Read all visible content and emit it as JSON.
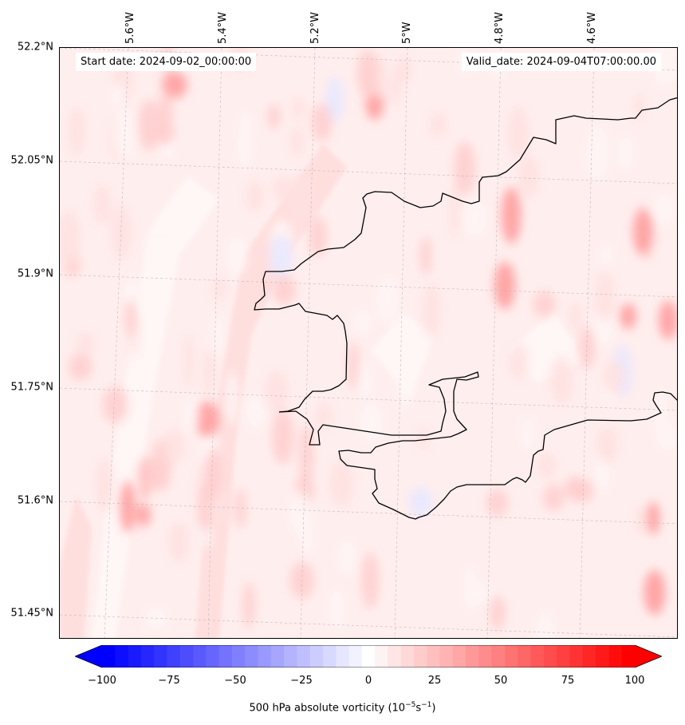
{
  "map": {
    "start_date": "Start date: 2024-09-02_00:00:00",
    "valid_date": "Valid_date: 2024-09-04T07:00:00.00",
    "lat_labels": [
      "52.2°N",
      "52.05°N",
      "51.9°N",
      "51.75°N",
      "51.6°N",
      "51.45°N"
    ],
    "lon_labels": [
      "5.6°W",
      "5.4°W",
      "5.2°W",
      "5°W",
      "4.8°W",
      "4.6°W"
    ],
    "coastline_color": "#000000",
    "field_colors": {
      "base": "#ffeeee",
      "light": "#ffe0e0",
      "medium": "#ffcccc",
      "strong": "#ff9a9a",
      "white": "#fff6f6",
      "blue": "#e6e8ff"
    }
  },
  "colorbar": {
    "min": -100,
    "max": 100,
    "levels": 41,
    "low_color": "#0000ff",
    "mid_color": "#ffffff",
    "high_color": "#ff0000",
    "tick_labels": [
      "−100",
      "−75",
      "−50",
      "−25",
      "0",
      "25",
      "50",
      "75",
      "100"
    ],
    "title": "500 hPa absolute vorticity (10",
    "title_exp1": "−5",
    "title_mid": "s",
    "title_exp2": "−1",
    "title_end": ")"
  }
}
